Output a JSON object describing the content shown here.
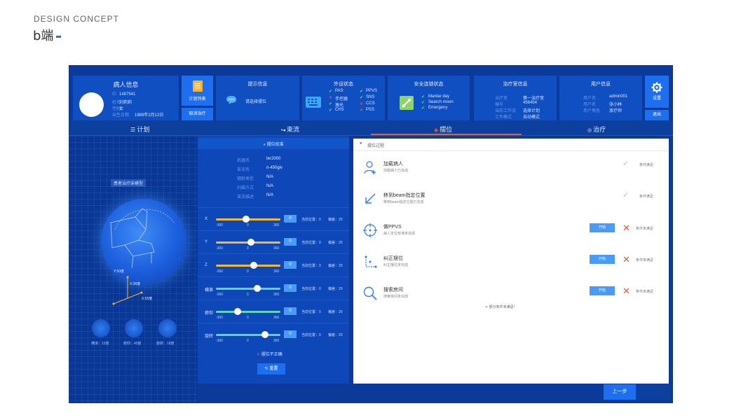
{
  "header": {
    "concept": "DESIGN CONCEPT",
    "term": "b端"
  },
  "patient": {
    "title": "病人信息",
    "rows": [
      {
        "label": "ID",
        "value": "1487541"
      },
      {
        "label": "姓名",
        "value": "刘莉莉"
      },
      {
        "label": "性别",
        "value": "女"
      },
      {
        "label": "出生日期",
        "value": "1989年2月12日"
      }
    ]
  },
  "plan_buttons": {
    "list": "计划列表",
    "cancel": "取消治疗"
  },
  "prompt_card": {
    "title": "提示信息",
    "message": "请选择摆位"
  },
  "peripheral": {
    "title": "外设状态",
    "items": [
      {
        "label": "PAS",
        "ok": true
      },
      {
        "label": "PPVS",
        "ok": true
      },
      {
        "label": "手控器",
        "ok": false
      },
      {
        "label": "SNS",
        "ok": true
      },
      {
        "label": "激光",
        "ok": true
      },
      {
        "label": "CCS",
        "ok": false
      },
      {
        "label": "CHS",
        "ok": true
      },
      {
        "label": "PSS",
        "ok": false
      }
    ]
  },
  "interlock": {
    "title": "安全连锁状态",
    "items": [
      "Mantar day",
      "Search moon",
      "Emergeny"
    ]
  },
  "treatment_room": {
    "title": "治疗室信息",
    "rows": [
      {
        "label": "治疗室",
        "value": "第一治疗室"
      },
      {
        "label": "编号",
        "value": "456454"
      },
      {
        "label": "当前工作流",
        "value": "选择计划"
      },
      {
        "label": "工作模式",
        "value": "自动模式"
      }
    ]
  },
  "user": {
    "title": "用户信息",
    "rows": [
      {
        "label": "用户名",
        "value": "admin001"
      },
      {
        "label": "用户名",
        "value": "张小林"
      },
      {
        "label": "用户角色",
        "value": "放疗师"
      }
    ]
  },
  "side_actions": {
    "settings": "设置",
    "exit": "退出"
  },
  "tabs": [
    {
      "label": "计划",
      "icon": "list-icon"
    },
    {
      "label": "束流",
      "icon": "beam-icon"
    },
    {
      "label": "摆位",
      "icon": "position-icon",
      "active": true
    },
    {
      "label": "治疗",
      "icon": "target-icon"
    }
  ],
  "scene": {
    "label": "患者治疗床模型",
    "axes": [
      "Y:50度",
      "X:30度",
      "X:55度"
    ],
    "dials": [
      "横滚：15度",
      "俯仰：45度",
      "旋转：18度"
    ]
  },
  "position_check": {
    "title": "摆位校准",
    "rows": [
      {
        "label": "机器名",
        "value": "ter2000"
      },
      {
        "label": "束流名",
        "value": "ri-450giv"
      },
      {
        "label": "辐射类型",
        "value": "N/A"
      },
      {
        "label": "扫描方式",
        "value": "N/A"
      },
      {
        "label": "束流描述",
        "value": "N/A"
      }
    ]
  },
  "sliders": [
    {
      "axis": "X",
      "value": "0",
      "fraction": 0.47,
      "color": "#f2b936",
      "current": "当前位置：0",
      "tolerance": "偏差：20"
    },
    {
      "axis": "Y",
      "value": "0",
      "fraction": 0.54,
      "color": "#f2b936",
      "current": "当前位置：0",
      "tolerance": "偏差：20"
    },
    {
      "axis": "Z",
      "value": "0",
      "fraction": 0.59,
      "color": "#f2b936",
      "current": "当前位置：0",
      "tolerance": "偏差：20"
    },
    {
      "axis": "横滚",
      "value": "0",
      "fraction": 0.64,
      "color": "#5fd6b0",
      "current": "当前位置：0",
      "tolerance": "偏差：20"
    },
    {
      "axis": "俯仰",
      "value": "0",
      "fraction": 0.34,
      "color": "#5fd6b0",
      "current": "当前位置：0",
      "tolerance": "偏差：20"
    },
    {
      "axis": "旋转",
      "value": "0",
      "fraction": 0.76,
      "color": "#5fd6b0",
      "current": "当前位置：0",
      "tolerance": "偏差：20"
    }
  ],
  "slider_scale": {
    "min": "-360",
    "mid": "0",
    "max": "360"
  },
  "position_status": "摆位不正确",
  "reset_label": "重置",
  "process": {
    "title": "摆位过程",
    "steps": [
      {
        "title": "加载病人",
        "sub": "加载病人已完成",
        "status": "条件满足",
        "done": true,
        "icon": "user-add-icon"
      },
      {
        "title": "移到beam指定位置",
        "sub": "移到beam指定位置已完成",
        "status": "条件满足",
        "done": true,
        "icon": "arrow-down-left-icon"
      },
      {
        "title": "做PPVS",
        "sub": "病人定位校准未完成",
        "status": "条件未满足",
        "done": false,
        "icon": "crosshair-icon"
      },
      {
        "title": "纠正摆位",
        "sub": "纠正摆位未完成",
        "status": "条件未满足",
        "done": false,
        "icon": "axes-icon"
      },
      {
        "title": "搜索房间",
        "sub": "搜索房间未完成",
        "status": "条件未满足",
        "done": false,
        "icon": "search-icon"
      }
    ],
    "start_label": "开始",
    "warning": "部分条件未满足!"
  },
  "footer": {
    "prev": "上一步"
  }
}
